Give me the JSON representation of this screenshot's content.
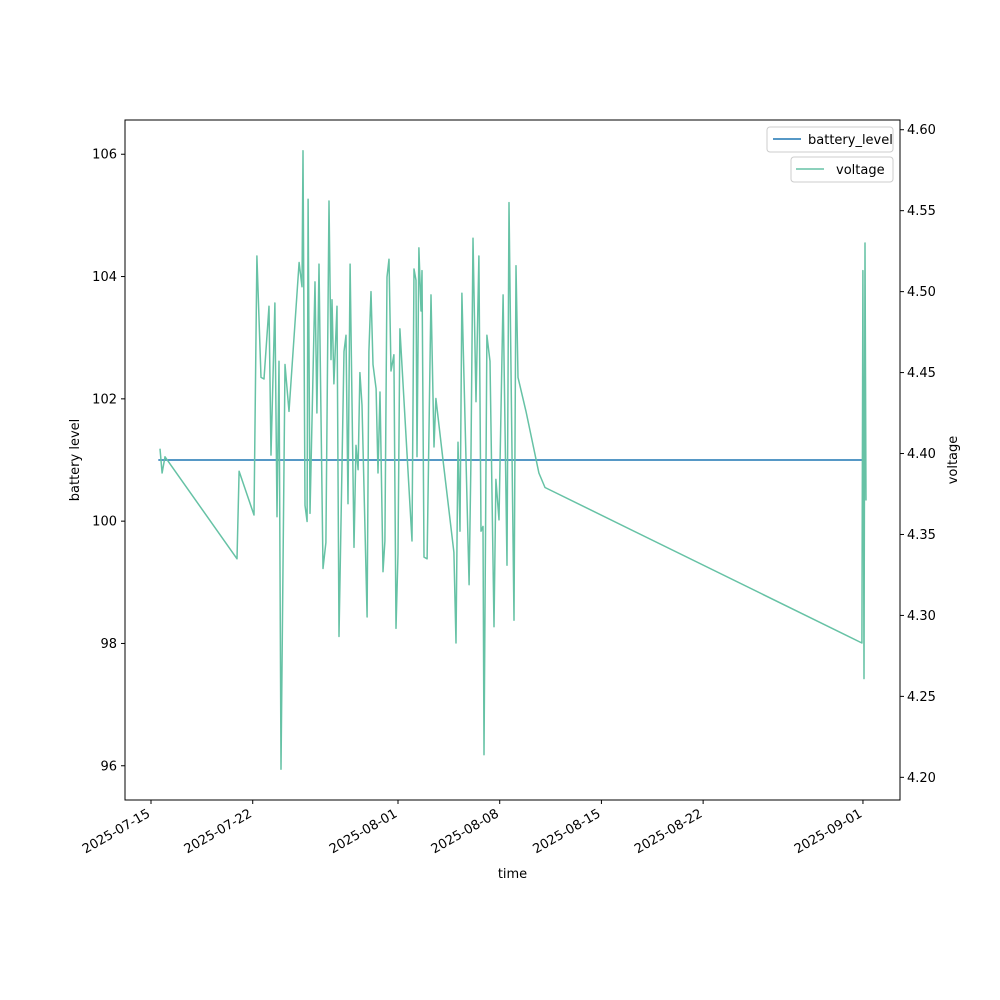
{
  "chart_data": {
    "type": "line",
    "title": "",
    "xlabel": "time",
    "ylabel_left": "battery level",
    "ylabel_right": "voltage",
    "x_unit": "days since 2025-07-15",
    "xlim": [
      -1.79,
      51.55
    ],
    "ylim_left": [
      95.44,
      106.56
    ],
    "ylim_right": [
      4.186,
      4.606
    ],
    "grid": false,
    "x_ticks": [
      {
        "value": 0,
        "label": "2025-07-15"
      },
      {
        "value": 7,
        "label": "2025-07-22"
      },
      {
        "value": 17,
        "label": "2025-08-01"
      },
      {
        "value": 24,
        "label": "2025-08-08"
      },
      {
        "value": 31,
        "label": "2025-08-15"
      },
      {
        "value": 38,
        "label": "2025-08-22"
      },
      {
        "value": 49,
        "label": "2025-09-01"
      }
    ],
    "y_ticks_left": [
      {
        "value": 96,
        "label": "96"
      },
      {
        "value": 98,
        "label": "98"
      },
      {
        "value": 100,
        "label": "100"
      },
      {
        "value": 102,
        "label": "102"
      },
      {
        "value": 104,
        "label": "104"
      },
      {
        "value": 106,
        "label": "106"
      }
    ],
    "y_ticks_right": [
      {
        "value": 4.2,
        "label": "4.20"
      },
      {
        "value": 4.25,
        "label": "4.25"
      },
      {
        "value": 4.3,
        "label": "4.30"
      },
      {
        "value": 4.35,
        "label": "4.35"
      },
      {
        "value": 4.4,
        "label": "4.40"
      },
      {
        "value": 4.45,
        "label": "4.45"
      },
      {
        "value": 4.5,
        "label": "4.50"
      },
      {
        "value": 4.55,
        "label": "4.55"
      },
      {
        "value": 4.6,
        "label": "4.60"
      }
    ],
    "legends": [
      {
        "name": "battery_level",
        "color": "#1f77b4"
      },
      {
        "name": "voltage",
        "color": "#66c2a5"
      }
    ],
    "legend_placement": "top-right",
    "series": [
      {
        "name": "battery_level",
        "axis": "left",
        "color": "#1f77b4",
        "x": [
          0.5,
          49.2
        ],
        "y": [
          101,
          101
        ]
      },
      {
        "name": "voltage",
        "axis": "right",
        "color": "#66c2a5",
        "x": [
          0.62,
          0.76,
          0.96,
          5.92,
          6.06,
          7.09,
          7.29,
          7.57,
          7.78,
          8.12,
          8.26,
          8.53,
          8.67,
          8.81,
          8.95,
          9.22,
          9.5,
          10.19,
          10.39,
          10.46,
          10.6,
          10.74,
          10.81,
          10.94,
          11.29,
          11.42,
          11.56,
          11.84,
          12.04,
          12.25,
          12.39,
          12.46,
          12.59,
          12.8,
          12.94,
          13.28,
          13.42,
          13.56,
          13.7,
          13.97,
          14.11,
          14.25,
          14.38,
          14.52,
          14.87,
          15.0,
          15.14,
          15.28,
          15.49,
          15.62,
          15.76,
          15.97,
          16.1,
          16.24,
          16.38,
          16.52,
          16.72,
          16.86,
          17.0,
          17.13,
          17.96,
          18.1,
          18.24,
          18.31,
          18.44,
          18.58,
          18.65,
          18.79,
          19.0,
          19.27,
          19.48,
          19.61,
          20.1,
          20.85,
          20.99,
          21.13,
          21.27,
          21.4,
          21.89,
          22.02,
          22.16,
          22.37,
          22.57,
          22.71,
          22.85,
          22.92,
          23.12,
          23.33,
          23.61,
          23.74,
          23.95,
          24.23,
          24.5,
          24.64,
          24.98,
          25.12,
          25.26,
          25.81,
          26.7,
          27.12,
          48.93,
          49.0,
          49.07,
          49.14,
          49.21
        ],
        "y": [
          4.403,
          4.388,
          4.398,
          4.335,
          4.389,
          4.362,
          4.522,
          4.447,
          4.446,
          4.491,
          4.399,
          4.493,
          4.361,
          4.457,
          4.205,
          4.455,
          4.426,
          4.518,
          4.503,
          4.587,
          4.368,
          4.358,
          4.557,
          4.363,
          4.506,
          4.425,
          4.517,
          4.329,
          4.345,
          4.556,
          4.458,
          4.495,
          4.443,
          4.491,
          4.287,
          4.463,
          4.473,
          4.369,
          4.517,
          4.342,
          4.405,
          4.39,
          4.45,
          4.43,
          4.299,
          4.463,
          4.5,
          4.455,
          4.44,
          4.388,
          4.438,
          4.327,
          4.346,
          4.509,
          4.52,
          4.451,
          4.461,
          4.292,
          4.338,
          4.477,
          4.346,
          4.514,
          4.507,
          4.398,
          4.527,
          4.488,
          4.513,
          4.336,
          4.335,
          4.498,
          4.404,
          4.434,
          4.396,
          4.339,
          4.283,
          4.407,
          4.352,
          4.499,
          4.319,
          4.394,
          4.533,
          4.432,
          4.522,
          4.352,
          4.355,
          4.214,
          4.473,
          4.457,
          4.293,
          4.384,
          4.359,
          4.498,
          4.331,
          4.555,
          4.297,
          4.516,
          4.447,
          4.426,
          4.388,
          4.379,
          4.283,
          4.513,
          4.261,
          4.53,
          4.371
        ]
      }
    ]
  }
}
